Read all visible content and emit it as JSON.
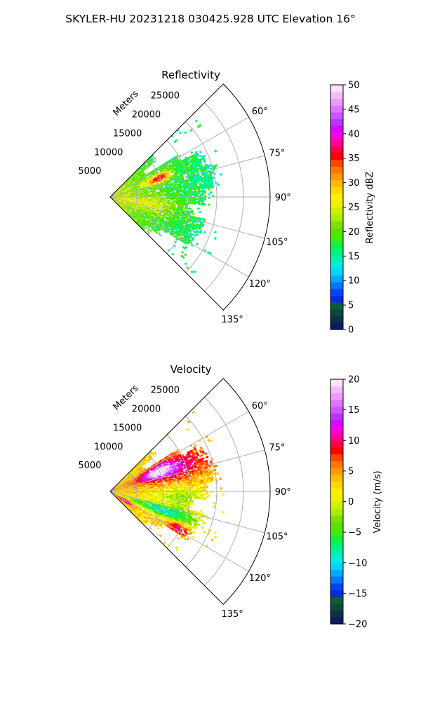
{
  "suptitle": "SKYLER-HU  20231218  030425.928 UTC Elevation 16°",
  "chart_data": [
    {
      "type": "heatmap",
      "projection": "polar-sector",
      "title": "Reflectivity",
      "radial_label": "Meters",
      "theta_range_deg": [
        45,
        135
      ],
      "r_range": [
        0,
        30000
      ],
      "r_ticks": [
        "5000",
        "10000",
        "15000",
        "20000",
        "25000"
      ],
      "theta_ticks": [
        "60°",
        "75°",
        "90°",
        "105°",
        "120°",
        "135°"
      ],
      "grid": true,
      "colorbar": {
        "label": "Reflectivity dBZ",
        "range": [
          0,
          50
        ],
        "ticks": [
          "0",
          "5",
          "10",
          "15",
          "20",
          "25",
          "30",
          "35",
          "40",
          "45",
          "50"
        ],
        "colors": [
          "#0a1a66",
          "#0d2f4a",
          "#0a4a3a",
          "#0b5e3a",
          "#0a2ad8",
          "#0044ff",
          "#0077ff",
          "#00aaff",
          "#00d4ff",
          "#00eedd",
          "#00f0b0",
          "#00f27a",
          "#10f040",
          "#3ef000",
          "#5ee000",
          "#7fe000",
          "#a8f000",
          "#d0f000",
          "#eef000",
          "#fff000",
          "#ffd800",
          "#ffbb00",
          "#ff9900",
          "#ff7700",
          "#ff4400",
          "#ff0000",
          "#ff0044",
          "#ff0099",
          "#ff00dd",
          "#e000ff",
          "#bb33ff",
          "#cc55ff",
          "#dd77ff",
          "#ee99ff",
          "#f4bbf8",
          "#fbe0fb"
        ]
      },
      "field": "reflectivity"
    },
    {
      "type": "heatmap",
      "projection": "polar-sector",
      "title": "Velocity",
      "radial_label": "Meters",
      "theta_range_deg": [
        45,
        135
      ],
      "r_range": [
        0,
        30000
      ],
      "r_ticks": [
        "5000",
        "10000",
        "15000",
        "20000",
        "25000"
      ],
      "theta_ticks": [
        "60°",
        "75°",
        "90°",
        "105°",
        "120°",
        "135°"
      ],
      "grid": true,
      "colorbar": {
        "label": "Velocity (m/s)",
        "range": [
          -20,
          20
        ],
        "ticks": [
          "−20",
          "−15",
          "−10",
          "−5",
          "0",
          "5",
          "10",
          "15",
          "20"
        ],
        "colors": [
          "#0a1a66",
          "#0d2f4a",
          "#0a4a3a",
          "#0b5e3a",
          "#0a2ad8",
          "#0044ff",
          "#0077ff",
          "#00aaff",
          "#00d4ff",
          "#00eedd",
          "#00f0b0",
          "#00f27a",
          "#10f040",
          "#3ef000",
          "#5ee000",
          "#7fe000",
          "#a8f000",
          "#d0f000",
          "#eef000",
          "#fff000",
          "#ffd800",
          "#ffbb00",
          "#ff9900",
          "#ff7700",
          "#ff4400",
          "#ff0000",
          "#ff0044",
          "#ff0099",
          "#ff00dd",
          "#e000ff",
          "#bb33ff",
          "#cc55ff",
          "#dd77ff",
          "#ee99ff",
          "#f4bbf8",
          "#fbe0fb"
        ]
      },
      "field": "velocity"
    }
  ]
}
